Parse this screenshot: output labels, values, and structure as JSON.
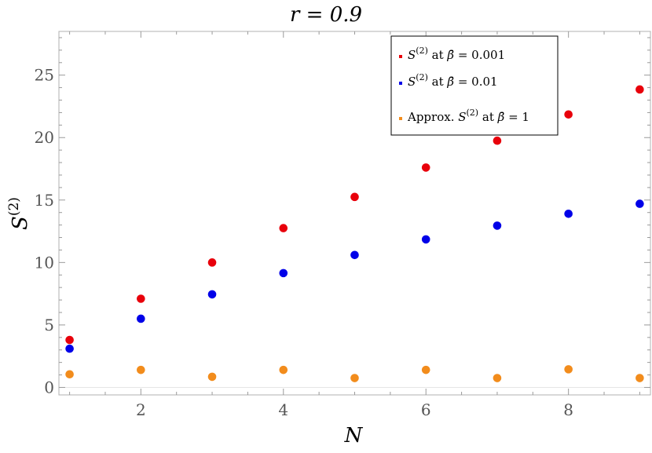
{
  "chart_data": {
    "type": "scatter",
    "title": "r = 0.9",
    "xlabel": "N",
    "ylabel": "S(2)",
    "xlim": [
      0.85,
      9.15
    ],
    "ylim": [
      -0.6,
      28.5
    ],
    "xticks": [
      2,
      4,
      6,
      8
    ],
    "yticks": [
      0,
      5,
      10,
      15,
      20,
      25
    ],
    "grid": false,
    "legend_position": "top-right",
    "series": [
      {
        "name": "S(2) at β̄ = 0.001",
        "color": "#e8000b",
        "x": [
          1,
          2,
          3,
          4,
          5,
          6,
          7,
          8,
          9
        ],
        "y": [
          3.8,
          7.1,
          10.0,
          12.75,
          15.25,
          17.6,
          19.75,
          21.85,
          23.85
        ]
      },
      {
        "name": "S(2) at β̄ = 0.01",
        "color": "#0000e8",
        "x": [
          1,
          2,
          3,
          4,
          5,
          6,
          7,
          8,
          9
        ],
        "y": [
          3.1,
          5.5,
          7.45,
          9.15,
          10.6,
          11.85,
          12.95,
          13.9,
          14.7
        ]
      },
      {
        "name": "Approx. S(2) at β̄ = 1",
        "color": "#f28c1c",
        "x": [
          1,
          2,
          3,
          4,
          5,
          6,
          7,
          8,
          9
        ],
        "y": [
          1.05,
          1.4,
          0.85,
          1.4,
          0.75,
          1.4,
          0.75,
          1.45,
          0.75
        ]
      }
    ]
  },
  "legend": {
    "entries": [
      {
        "prefix": "",
        "symbol": "S",
        "sup": "(2)",
        "mid": " at ",
        "var": "β̄",
        "value": " = 0.001"
      },
      {
        "prefix": "",
        "symbol": "S",
        "sup": "(2)",
        "mid": " at ",
        "var": "β̄",
        "value": " = 0.01"
      },
      {
        "prefix": "Approx. ",
        "symbol": "S",
        "sup": "(2)",
        "mid": " at ",
        "var": "β̄",
        "value": " = 1"
      }
    ]
  }
}
